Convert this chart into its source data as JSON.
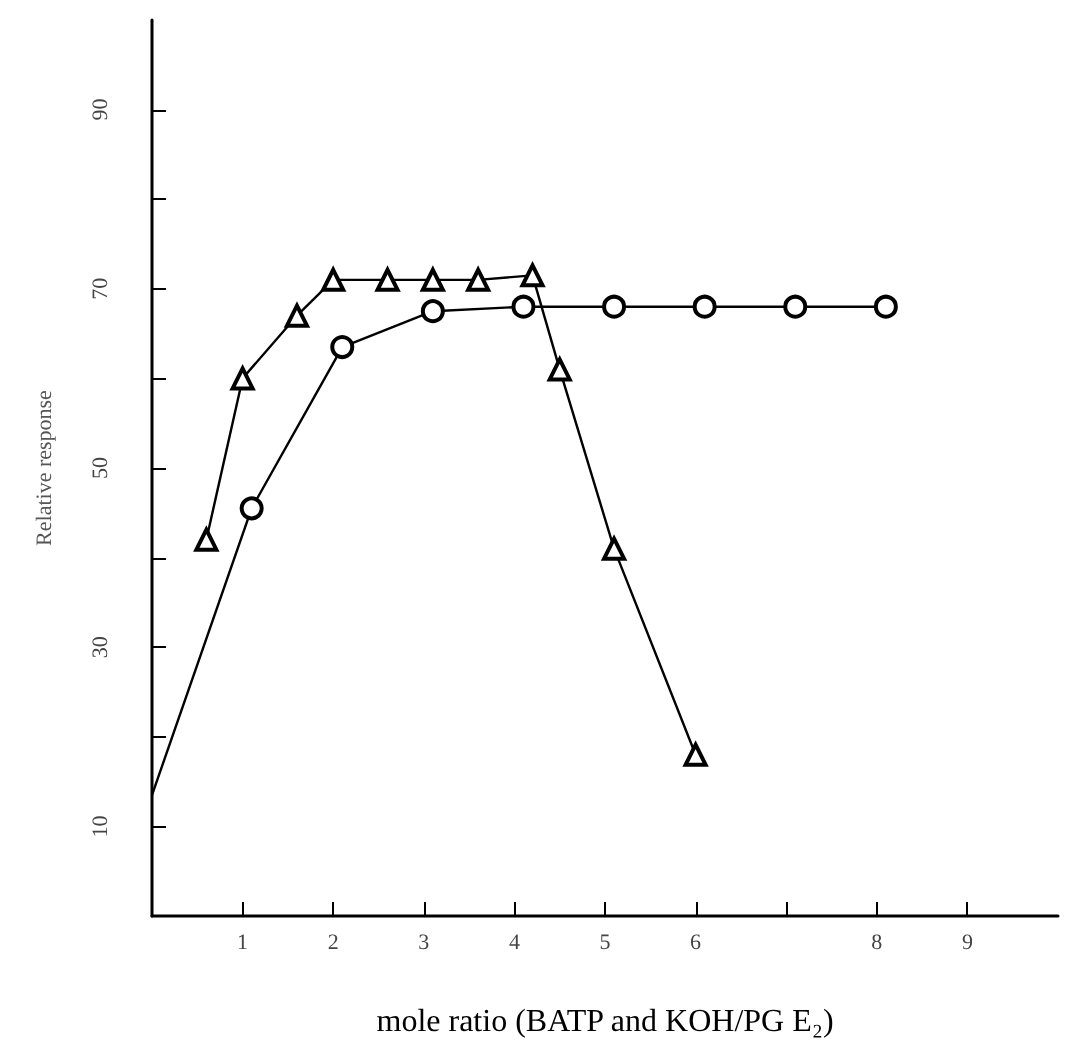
{
  "chart_data": {
    "type": "line",
    "xlabel": "mole ratio (BATP and KOH/PG E₂)",
    "ylabel": "Relative response",
    "xlim": [
      0,
      10
    ],
    "xticks": [
      1,
      2,
      3,
      4,
      5,
      6,
      {
        "value": 7,
        "label": null
      },
      8,
      9
    ],
    "ylim": [
      0,
      100
    ],
    "yticks": [
      10,
      {
        "value": 20,
        "label": null
      },
      30,
      {
        "value": 40,
        "label": null
      },
      50,
      {
        "value": 60,
        "label": null
      },
      70,
      {
        "value": 80,
        "label": null
      },
      90
    ],
    "line_style": "solid",
    "series": [
      {
        "color": "#000000",
        "marker": "triangle",
        "x": [
          0.6,
          1.0,
          1.6,
          2.0,
          2.6,
          3.1,
          3.6,
          4.2,
          4.5,
          5.1,
          6.0
        ],
        "values": [
          42,
          60,
          67,
          71,
          71,
          71,
          71,
          71.5,
          61,
          41,
          18
        ]
      },
      {
        "color": "#000000",
        "marker": "circle",
        "x": [
          0,
          1.1,
          2.1,
          3.1,
          4.1,
          5.1,
          6.1,
          7.1,
          8.1
        ],
        "values": [
          13.5,
          45.5,
          63.5,
          67.5,
          68,
          68,
          68,
          68,
          68
        ]
      }
    ]
  }
}
